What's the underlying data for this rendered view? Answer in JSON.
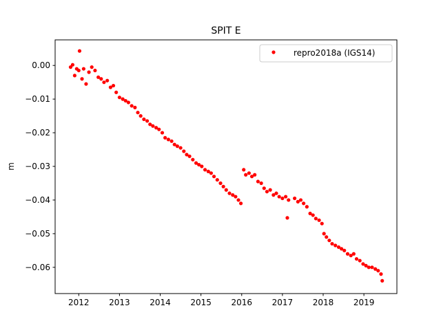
{
  "chart_data": {
    "type": "scatter",
    "title": "SPIT E",
    "xlabel": "",
    "ylabel": "m",
    "xlim": [
      2011.42,
      2019.81
    ],
    "ylim": [
      -0.0678,
      0.0076
    ],
    "xticks": [
      2012,
      2013,
      2014,
      2015,
      2016,
      2017,
      2018,
      2019
    ],
    "xtick_labels": [
      "2012",
      "2013",
      "2014",
      "2015",
      "2016",
      "2017",
      "2018",
      "2019"
    ],
    "yticks": [
      0.0,
      -0.01,
      -0.02,
      -0.03,
      -0.04,
      -0.05,
      -0.06
    ],
    "ytick_labels": [
      "0.00",
      "−0.01",
      "−0.02",
      "−0.03",
      "−0.04",
      "−0.05",
      "−0.06"
    ],
    "grid": false,
    "legend": {
      "placement": "top-right",
      "entries": [
        "repro2018a (IGS14)"
      ]
    },
    "series": [
      {
        "name": "repro2018a (IGS14)",
        "color": "#ff0000",
        "x": [
          2011.8,
          2011.85,
          2011.9,
          2011.95,
          2012.0,
          2012.02,
          2012.08,
          2012.12,
          2012.18,
          2012.25,
          2012.32,
          2012.4,
          2012.48,
          2012.55,
          2012.62,
          2012.7,
          2012.78,
          2012.85,
          2012.92,
          2013.0,
          2013.08,
          2013.15,
          2013.22,
          2013.3,
          2013.38,
          2013.45,
          2013.52,
          2013.6,
          2013.68,
          2013.75,
          2013.82,
          2013.9,
          2013.97,
          2014.05,
          2014.12,
          2014.2,
          2014.28,
          2014.35,
          2014.42,
          2014.5,
          2014.58,
          2014.65,
          2014.72,
          2014.8,
          2014.88,
          2014.95,
          2015.02,
          2015.1,
          2015.18,
          2015.25,
          2015.32,
          2015.4,
          2015.48,
          2015.55,
          2015.62,
          2015.7,
          2015.78,
          2015.85,
          2015.92,
          2015.98,
          2016.05,
          2016.1,
          2016.18,
          2016.25,
          2016.32,
          2016.4,
          2016.48,
          2016.55,
          2016.62,
          2016.7,
          2016.78,
          2016.85,
          2016.92,
          2017.0,
          2017.08,
          2017.12,
          2017.15,
          2017.3,
          2017.38,
          2017.45,
          2017.52,
          2017.6,
          2017.68,
          2017.75,
          2017.82,
          2017.9,
          2017.97,
          2018.02,
          2018.08,
          2018.15,
          2018.22,
          2018.3,
          2018.38,
          2018.45,
          2018.52,
          2018.6,
          2018.68,
          2018.75,
          2018.82,
          2018.9,
          2018.98,
          2019.05,
          2019.12,
          2019.2,
          2019.28,
          2019.35,
          2019.42,
          2019.45
        ],
        "y": [
          -0.0005,
          0.0002,
          -0.003,
          -0.001,
          -0.0015,
          0.0043,
          -0.004,
          -0.001,
          -0.0055,
          -0.002,
          -0.0005,
          -0.0015,
          -0.0035,
          -0.004,
          -0.005,
          -0.0045,
          -0.0065,
          -0.006,
          -0.008,
          -0.0095,
          -0.01,
          -0.0105,
          -0.011,
          -0.012,
          -0.0125,
          -0.014,
          -0.015,
          -0.016,
          -0.0165,
          -0.0175,
          -0.018,
          -0.0185,
          -0.019,
          -0.02,
          -0.0215,
          -0.022,
          -0.0225,
          -0.0235,
          -0.024,
          -0.0245,
          -0.0255,
          -0.0265,
          -0.027,
          -0.028,
          -0.029,
          -0.0295,
          -0.03,
          -0.031,
          -0.0315,
          -0.032,
          -0.033,
          -0.034,
          -0.035,
          -0.036,
          -0.037,
          -0.038,
          -0.0385,
          -0.039,
          -0.04,
          -0.041,
          -0.031,
          -0.0325,
          -0.032,
          -0.033,
          -0.0325,
          -0.0345,
          -0.035,
          -0.0365,
          -0.0375,
          -0.037,
          -0.0385,
          -0.038,
          -0.039,
          -0.0395,
          -0.039,
          -0.0453,
          -0.04,
          -0.0395,
          -0.0405,
          -0.04,
          -0.041,
          -0.042,
          -0.044,
          -0.0445,
          -0.0455,
          -0.046,
          -0.047,
          -0.05,
          -0.051,
          -0.052,
          -0.053,
          -0.0535,
          -0.054,
          -0.0545,
          -0.055,
          -0.056,
          -0.0565,
          -0.056,
          -0.0575,
          -0.058,
          -0.059,
          -0.0595,
          -0.06,
          -0.06,
          -0.0605,
          -0.061,
          -0.062,
          -0.064
        ]
      }
    ]
  }
}
